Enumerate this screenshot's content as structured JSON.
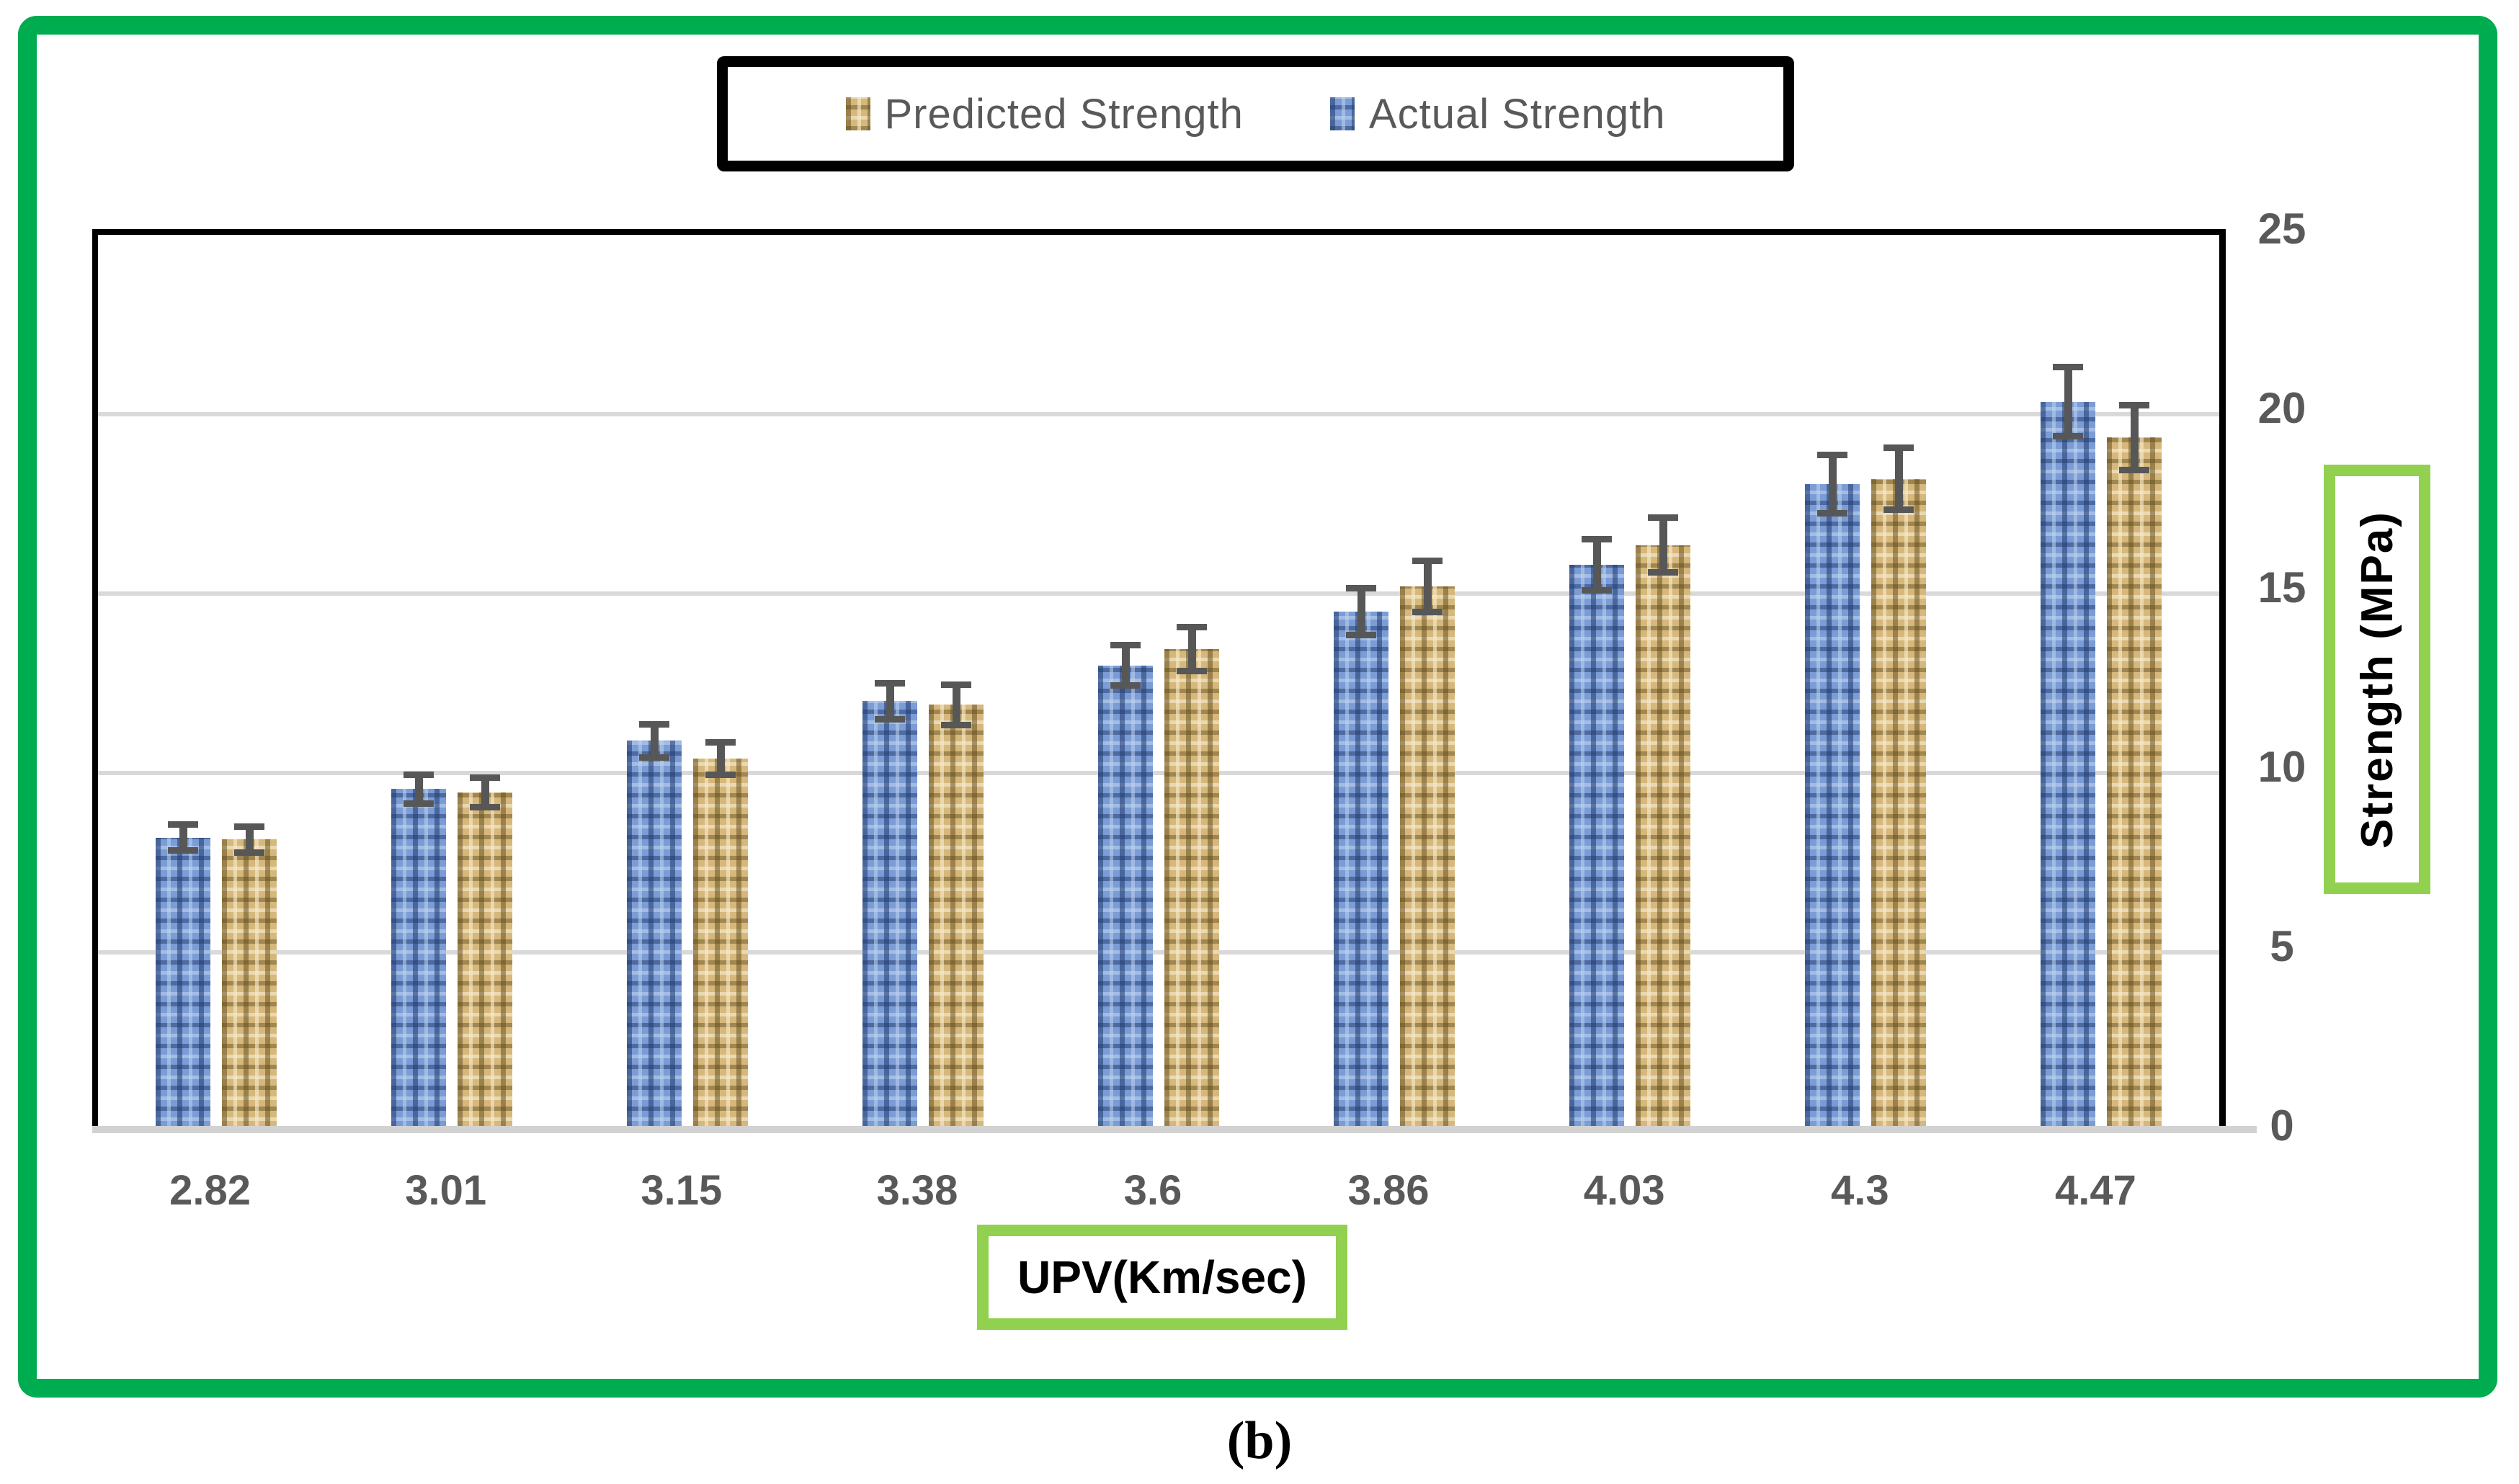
{
  "figure": {
    "caption": "(b)"
  },
  "legend": {
    "items": [
      {
        "label": "Predicted Strength",
        "series": "predicted",
        "color": "#d6b87c"
      },
      {
        "label": "Actual Strength",
        "series": "actual",
        "color": "#7b9cd4"
      }
    ]
  },
  "chart_data": {
    "type": "bar",
    "categories": [
      "2.82",
      "3.01",
      "3.15",
      "3.38",
      "3.6",
      "3.86",
      "4.03",
      "4.3",
      "4.47"
    ],
    "series": [
      {
        "name": "Actual Strength",
        "color": "#7b9cd4",
        "values": [
          8.2,
          9.55,
          10.9,
          12.0,
          13.0,
          14.5,
          15.8,
          18.05,
          20.35
        ],
        "errors": [
          0.45,
          0.5,
          0.55,
          0.6,
          0.65,
          0.75,
          0.8,
          0.9,
          1.05
        ]
      },
      {
        "name": "Predicted Strength",
        "color": "#d6b87c",
        "values": [
          8.15,
          9.45,
          10.4,
          11.9,
          13.45,
          15.2,
          16.35,
          18.2,
          19.35
        ],
        "errors": [
          0.45,
          0.5,
          0.55,
          0.65,
          0.7,
          0.8,
          0.85,
          0.95,
          1.0
        ]
      }
    ],
    "title": "",
    "xlabel": "UPV(Km/sec)",
    "ylabel": "Strength (MPa)",
    "ylim": [
      0,
      25
    ],
    "yticks": [
      "0",
      "5",
      "10",
      "15",
      "20",
      "25"
    ],
    "grid": true,
    "gridline_values": [
      5,
      10,
      15,
      20
    ],
    "legend_position": "top",
    "bar_order_in_group": [
      "actual",
      "predicted"
    ],
    "error_bars": true
  },
  "colors": {
    "frame_green": "#00AC50",
    "label_box_green": "#92d050",
    "gridline": "#d9d9d9",
    "axis_line": "#d2d2d2",
    "tick_text": "#595959",
    "error_bar": "#575757",
    "legend_border": "#000000"
  }
}
